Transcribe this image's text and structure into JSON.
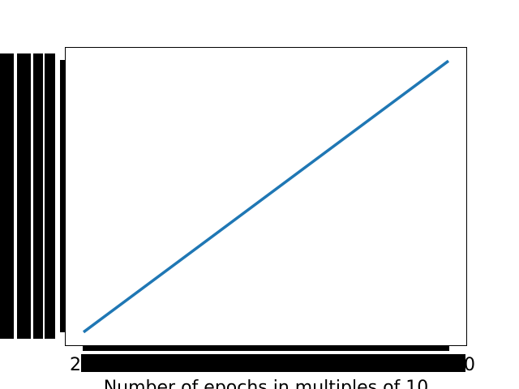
{
  "chart_data": {
    "type": "line",
    "title": "",
    "xlabel": "Number of epochs in multiples of 10",
    "ylabel": "",
    "x_tick_labels": [
      "2",
      "0"
    ],
    "series": [
      {
        "x": [
          1,
          300
        ],
        "y": [
          0.0,
          1.0
        ]
      }
    ],
    "xlim": [
      -13.95,
      314.95
    ],
    "ylim": [
      -0.05,
      1.05
    ],
    "grid": false,
    "colors": {
      "line": "#1f77b4",
      "axes": "#000000",
      "overdrawn_ticks": "#000000"
    },
    "note_visible": ""
  }
}
